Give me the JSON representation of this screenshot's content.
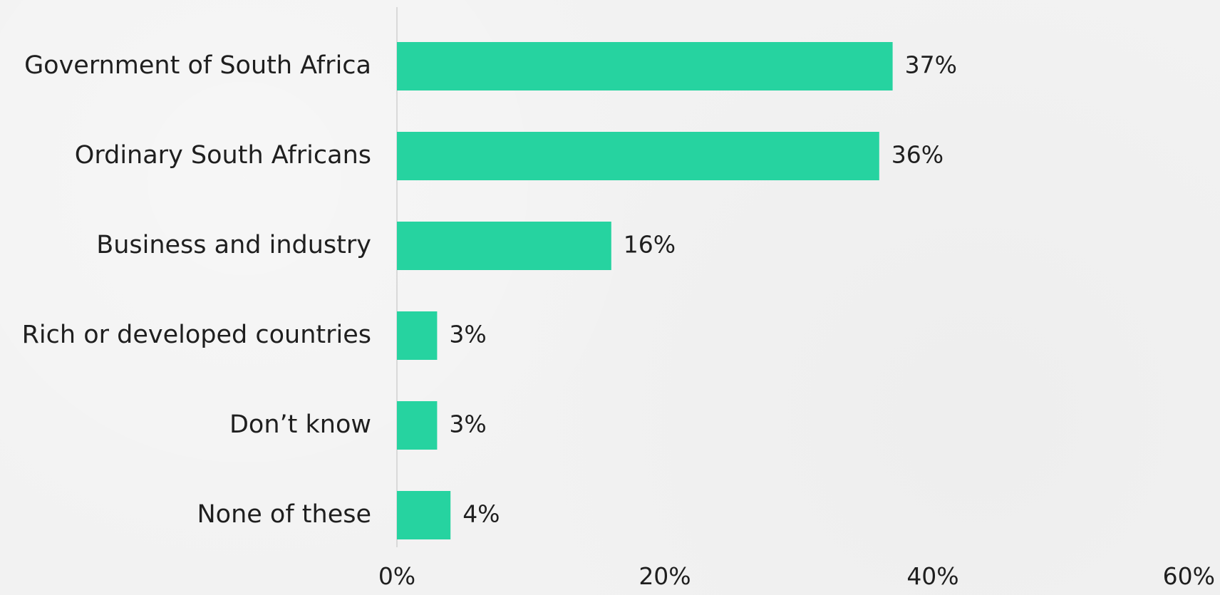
{
  "chart_data": {
    "type": "bar",
    "orientation": "horizontal",
    "categories": [
      "Government of South Africa",
      "Ordinary South Africans",
      "Business and industry",
      "Rich or developed countries",
      "Don’t know",
      "None of these"
    ],
    "values": [
      37,
      36,
      16,
      3,
      3,
      4
    ],
    "value_labels": [
      "37%",
      "36%",
      "16%",
      "3%",
      "3%",
      "4%"
    ],
    "xlim": [
      0,
      60
    ],
    "x_ticks": [
      0,
      20,
      40,
      60
    ],
    "x_tick_labels": [
      "0%",
      "20%",
      "40%",
      "60%"
    ],
    "bar_color": "#26d3a0",
    "grid": false,
    "legend": "none"
  }
}
